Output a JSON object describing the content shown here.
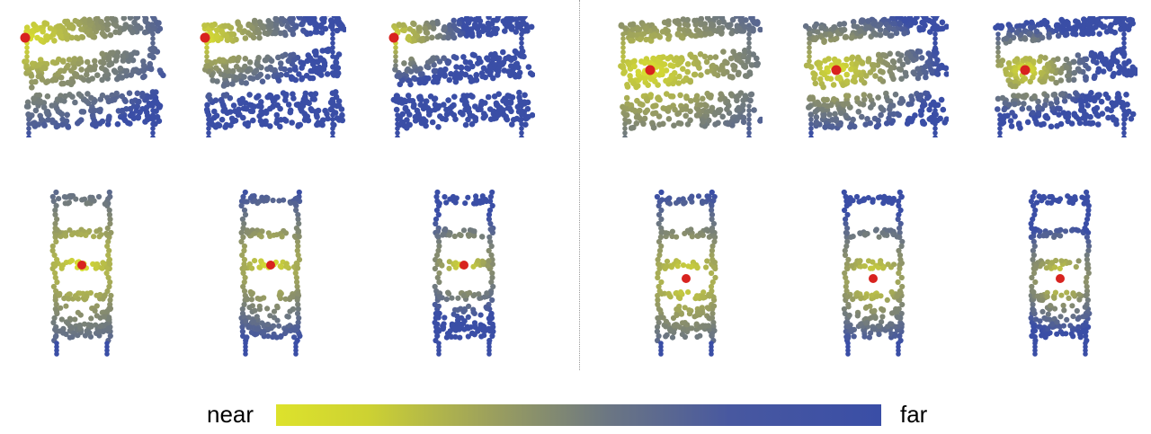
{
  "figure": {
    "panels_row1": [
      {
        "shape": "table",
        "map": "geodesic",
        "source": "corner"
      },
      {
        "shape": "table",
        "map": "geodesic",
        "source": "corner"
      },
      {
        "shape": "table",
        "map": "geodesic",
        "source": "corner"
      },
      {
        "shape": "table",
        "map": "geodesic",
        "source": "center"
      },
      {
        "shape": "table",
        "map": "geodesic",
        "source": "center"
      },
      {
        "shape": "table",
        "map": "geodesic",
        "source": "center"
      }
    ],
    "panels_row2": [
      {
        "shape": "shelf",
        "map": "geodesic",
        "source": "middle"
      },
      {
        "shape": "shelf",
        "map": "geodesic",
        "source": "middle"
      },
      {
        "shape": "shelf",
        "map": "geodesic",
        "source": "middle"
      },
      {
        "shape": "shelf",
        "map": "geodesic",
        "source": "middle"
      },
      {
        "shape": "shelf",
        "map": "geodesic",
        "source": "middle"
      },
      {
        "shape": "shelf",
        "map": "geodesic",
        "source": "middle"
      }
    ]
  },
  "colors": {
    "near": "#dde22c",
    "mid": "#8a8f6c",
    "far": "#3a4ea6",
    "source_point": "#d8231f",
    "divider": "#999999"
  },
  "legend": {
    "near_label": "near",
    "far_label": "far"
  }
}
